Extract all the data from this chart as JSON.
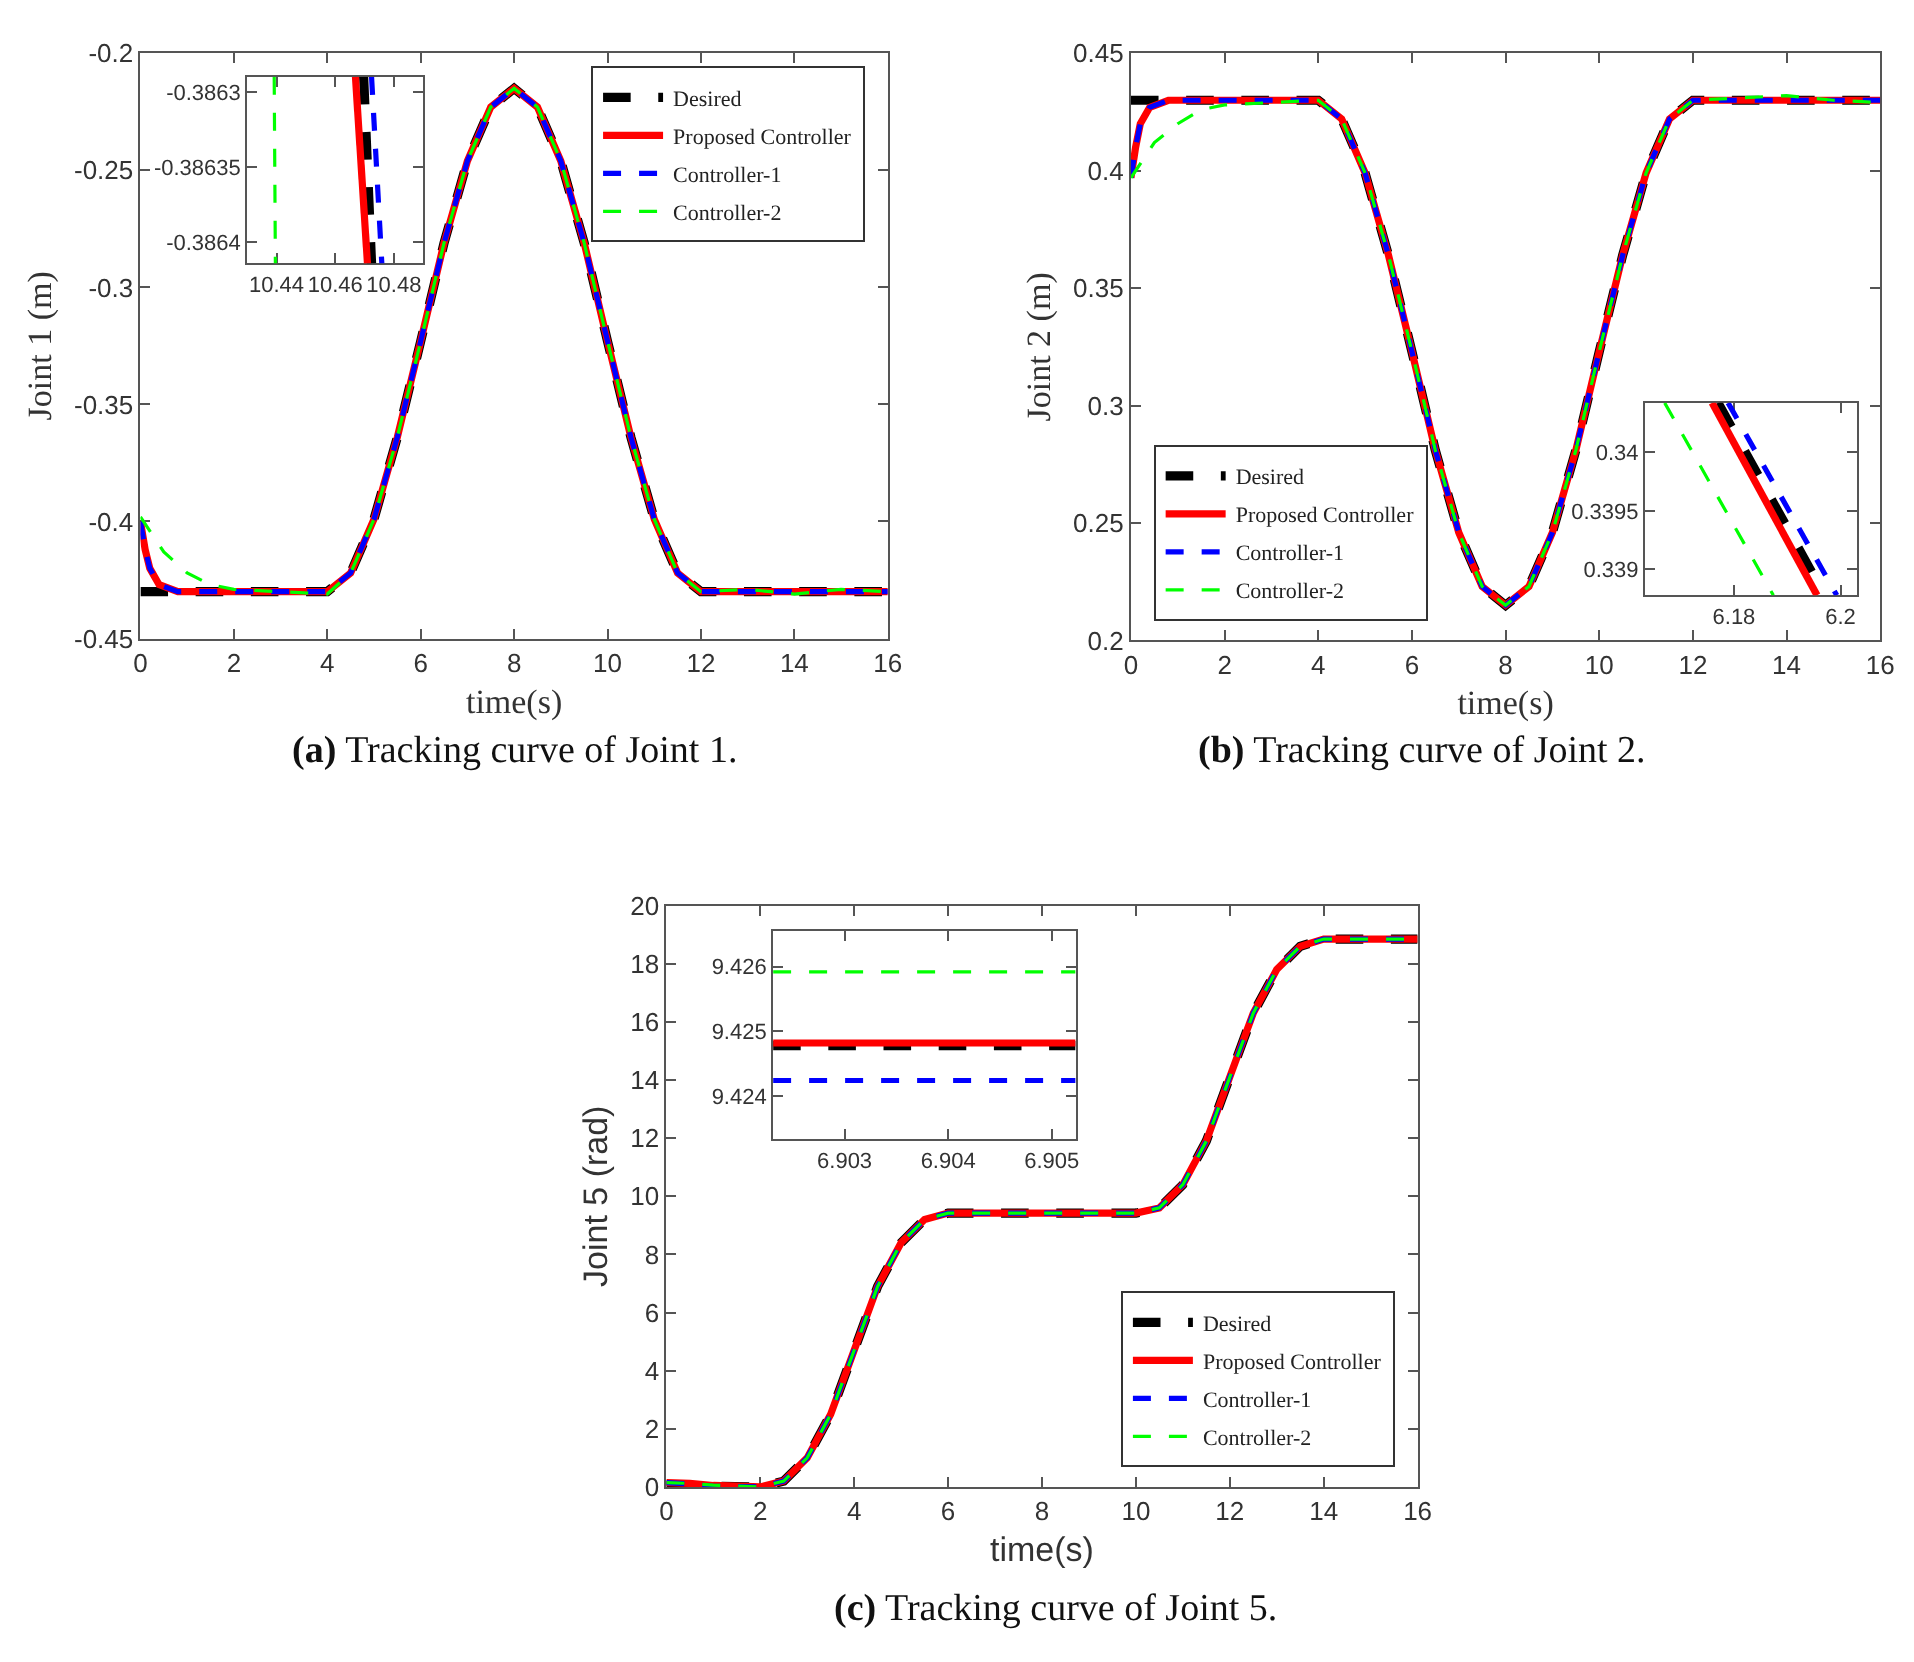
{
  "chart_data": [
    {
      "type": "line",
      "xlabel": "time(s)",
      "ylabel": "Joint 1 (m)",
      "annotations": [
        "(a) Tracking curve of Joint 1."
      ],
      "xlim": [
        0,
        16
      ],
      "ylim": [
        -0.45,
        -0.2
      ],
      "xticks": [
        0,
        2,
        4,
        6,
        8,
        10,
        12,
        14,
        16
      ],
      "yticks": [
        -0.45,
        -0.4,
        -0.35,
        -0.3,
        -0.25,
        -0.2
      ],
      "legend": "top right",
      "series": [
        {
          "name": "Desired",
          "color": "#000000",
          "line_style": "dashed",
          "x": [
            0,
            4,
            4.5,
            5,
            5.5,
            6,
            6.5,
            7,
            7.5,
            8,
            8.5,
            9,
            9.5,
            10,
            10.5,
            11,
            11.5,
            12,
            16
          ],
          "values": [
            -0.43,
            -0.43,
            -0.422,
            -0.399,
            -0.364,
            -0.323,
            -0.281,
            -0.246,
            -0.223,
            -0.215,
            -0.223,
            -0.246,
            -0.281,
            -0.323,
            -0.364,
            -0.399,
            -0.422,
            -0.43,
            -0.43
          ]
        },
        {
          "name": "Proposed Controller",
          "color": "#ff0000",
          "line_style": "solid",
          "x": [
            0,
            0.1,
            0.2,
            0.4,
            0.8,
            4,
            4.5,
            5,
            5.5,
            6,
            6.5,
            7,
            7.5,
            8,
            8.5,
            9,
            9.5,
            10,
            10.5,
            11,
            11.5,
            12,
            16
          ],
          "values": [
            -0.4,
            -0.412,
            -0.42,
            -0.427,
            -0.43,
            -0.43,
            -0.422,
            -0.399,
            -0.364,
            -0.323,
            -0.281,
            -0.246,
            -0.223,
            -0.215,
            -0.223,
            -0.246,
            -0.281,
            -0.323,
            -0.364,
            -0.399,
            -0.422,
            -0.43,
            -0.43
          ]
        },
        {
          "name": "Controller-1",
          "color": "#0000ff",
          "line_style": "dashed",
          "x": [
            0,
            0.1,
            0.2,
            0.4,
            0.8,
            4,
            4.5,
            5,
            5.5,
            6,
            6.5,
            7,
            7.5,
            8,
            8.5,
            9,
            9.5,
            10,
            10.5,
            11,
            11.5,
            12,
            16
          ],
          "values": [
            -0.4,
            -0.412,
            -0.42,
            -0.427,
            -0.43,
            -0.43,
            -0.422,
            -0.399,
            -0.364,
            -0.323,
            -0.281,
            -0.246,
            -0.223,
            -0.215,
            -0.223,
            -0.246,
            -0.281,
            -0.323,
            -0.364,
            -0.399,
            -0.422,
            -0.43,
            -0.43
          ]
        },
        {
          "name": "Controller-2",
          "color": "#00ff00",
          "line_style": "dashed",
          "x": [
            0,
            0.5,
            1,
            1.5,
            2,
            3,
            4,
            4.5,
            5,
            5.5,
            6,
            6.5,
            7,
            7.5,
            8,
            8.5,
            9,
            9.5,
            10,
            10.5,
            11,
            11.5,
            12,
            13,
            14,
            15,
            16
          ],
          "values": [
            -0.398,
            -0.413,
            -0.422,
            -0.427,
            -0.429,
            -0.43,
            -0.431,
            -0.422,
            -0.399,
            -0.364,
            -0.323,
            -0.281,
            -0.246,
            -0.223,
            -0.215,
            -0.223,
            -0.246,
            -0.281,
            -0.323,
            -0.364,
            -0.399,
            -0.422,
            -0.43,
            -0.429,
            -0.431,
            -0.429,
            -0.43
          ]
        }
      ]
    },
    {
      "type": "line",
      "xlim": [
        10.43,
        10.49
      ],
      "ylim": [
        -0.386414,
        -0.38629
      ],
      "xticks": [
        10.44,
        10.46,
        10.48
      ],
      "yticks": [
        -0.3864,
        -0.38635,
        -0.3863
      ],
      "series": [
        {
          "color": "#000000",
          "line_style": "dashed",
          "x": [
            10.4697,
            10.4724
          ],
          "values": [
            -0.38629,
            -0.386414
          ]
        },
        {
          "color": "#ff0000",
          "line_style": "solid",
          "x": [
            10.4669,
            10.471
          ],
          "values": [
            -0.38629,
            -0.386414
          ]
        },
        {
          "color": "#0000ff",
          "line_style": "dashed",
          "x": [
            10.4724,
            10.4759
          ],
          "values": [
            -0.38629,
            -0.386414
          ]
        },
        {
          "color": "#00ff00",
          "line_style": "dashed",
          "x": [
            10.4392,
            10.4396
          ],
          "values": [
            -0.38629,
            -0.386414
          ]
        }
      ]
    },
    {
      "type": "line",
      "xlabel": "time(s)",
      "ylabel": "Joint 2 (m)",
      "annotations": [
        "(b) Tracking curve of Joint 2."
      ],
      "xlim": [
        0,
        16
      ],
      "ylim": [
        0.2,
        0.45
      ],
      "xticks": [
        0,
        2,
        4,
        6,
        8,
        10,
        12,
        14,
        16
      ],
      "yticks": [
        0.2,
        0.25,
        0.3,
        0.35,
        0.4,
        0.45
      ],
      "legend": "bottom left",
      "series": [
        {
          "name": "Desired",
          "color": "#000000",
          "line_style": "dashed",
          "x": [
            0,
            4,
            4.5,
            5,
            5.5,
            6,
            6.5,
            7,
            7.5,
            8,
            8.5,
            9,
            9.5,
            10,
            10.5,
            11,
            11.5,
            12,
            16
          ],
          "values": [
            0.43,
            0.43,
            0.422,
            0.399,
            0.364,
            0.323,
            0.281,
            0.246,
            0.223,
            0.215,
            0.223,
            0.246,
            0.281,
            0.323,
            0.364,
            0.399,
            0.422,
            0.43,
            0.43
          ]
        },
        {
          "name": "Proposed Controller",
          "color": "#ff0000",
          "line_style": "solid",
          "x": [
            0,
            0.1,
            0.2,
            0.4,
            0.8,
            4,
            4.5,
            5,
            5.5,
            6,
            6.5,
            7,
            7.5,
            8,
            8.5,
            9,
            9.5,
            10,
            10.5,
            11,
            11.5,
            12,
            16
          ],
          "values": [
            0.397,
            0.41,
            0.42,
            0.427,
            0.43,
            0.43,
            0.422,
            0.399,
            0.364,
            0.323,
            0.281,
            0.246,
            0.223,
            0.215,
            0.223,
            0.246,
            0.281,
            0.323,
            0.364,
            0.399,
            0.422,
            0.43,
            0.43
          ]
        },
        {
          "name": "Controller-1",
          "color": "#0000ff",
          "line_style": "dashed",
          "x": [
            0,
            0.1,
            0.2,
            0.4,
            0.8,
            4,
            4.5,
            5,
            5.5,
            6,
            6.5,
            7,
            7.5,
            8,
            8.5,
            9,
            9.5,
            10,
            10.5,
            11,
            11.5,
            12,
            16
          ],
          "values": [
            0.397,
            0.41,
            0.42,
            0.427,
            0.43,
            0.43,
            0.422,
            0.399,
            0.364,
            0.323,
            0.281,
            0.246,
            0.223,
            0.215,
            0.223,
            0.246,
            0.281,
            0.323,
            0.364,
            0.399,
            0.422,
            0.43,
            0.43
          ]
        },
        {
          "name": "Controller-2",
          "color": "#00ff00",
          "line_style": "dashed",
          "x": [
            0,
            0.5,
            1,
            1.5,
            2,
            3,
            4,
            4.5,
            5,
            5.5,
            6,
            6.5,
            7,
            7.5,
            8,
            8.5,
            9,
            9.5,
            10,
            10.5,
            11,
            11.5,
            12,
            13,
            14,
            15,
            16
          ],
          "values": [
            0.397,
            0.412,
            0.42,
            0.426,
            0.428,
            0.429,
            0.43,
            0.422,
            0.399,
            0.364,
            0.323,
            0.281,
            0.246,
            0.223,
            0.215,
            0.223,
            0.246,
            0.281,
            0.323,
            0.364,
            0.399,
            0.422,
            0.43,
            0.431,
            0.432,
            0.43,
            0.429
          ]
        }
      ]
    },
    {
      "type": "line",
      "xlim": [
        6.1633,
        6.203
      ],
      "ylim": [
        0.33878,
        0.34042
      ],
      "xticks": [
        6.18,
        6.2
      ],
      "yticks": [
        0.339,
        0.3395,
        0.34
      ],
      "series": [
        {
          "color": "#000000",
          "line_style": "dashed",
          "x": [
            6.177,
            6.197
          ],
          "values": [
            0.34042,
            0.33878
          ]
        },
        {
          "color": "#ff0000",
          "line_style": "solid",
          "x": [
            6.1759,
            6.1956
          ],
          "values": [
            0.34042,
            0.33878
          ]
        },
        {
          "color": "#0000ff",
          "line_style": "dashed",
          "x": [
            6.1789,
            6.1993
          ],
          "values": [
            0.34042,
            0.33878
          ]
        },
        {
          "color": "#00ff00",
          "line_style": "dashed",
          "x": [
            6.167,
            6.1874
          ],
          "values": [
            0.34042,
            0.33878
          ]
        }
      ]
    },
    {
      "type": "line",
      "xlabel": "time(s)",
      "ylabel": "Joint 5 (rad)",
      "annotations": [
        "(c) Tracking curve of Joint 5."
      ],
      "xlim": [
        0,
        16
      ],
      "ylim": [
        0,
        20
      ],
      "xticks": [
        0,
        2,
        4,
        6,
        8,
        10,
        12,
        14,
        16
      ],
      "yticks": [
        0,
        2,
        4,
        6,
        8,
        10,
        12,
        14,
        16,
        18,
        20
      ],
      "legend": "bottom right",
      "series": [
        {
          "name": "Desired",
          "color": "#000000",
          "line_style": "dashed",
          "x": [
            0,
            2,
            2.5,
            3,
            3.5,
            4,
            4.5,
            5,
            5.5,
            6,
            10,
            10.5,
            11,
            11.5,
            12,
            12.5,
            13,
            13.5,
            14,
            16
          ],
          "values": [
            0.05,
            0,
            0.2,
            1.0,
            2.5,
            4.7,
            6.9,
            8.4,
            9.2,
            9.42,
            9.42,
            9.6,
            10.4,
            11.9,
            14.1,
            16.3,
            17.8,
            18.6,
            18.85,
            18.85
          ]
        },
        {
          "name": "Proposed Controller",
          "color": "#ff0000",
          "line_style": "solid",
          "x": [
            0,
            0.5,
            1,
            2,
            2.5,
            3,
            3.5,
            4,
            4.5,
            5,
            5.5,
            6,
            10,
            10.5,
            11,
            11.5,
            12,
            12.5,
            13,
            13.5,
            14,
            16
          ],
          "values": [
            0.15,
            0.12,
            0.05,
            0,
            0.2,
            1.0,
            2.5,
            4.7,
            6.9,
            8.4,
            9.2,
            9.42,
            9.42,
            9.6,
            10.4,
            11.9,
            14.1,
            16.3,
            17.8,
            18.6,
            18.85,
            18.85
          ]
        },
        {
          "name": "Controller-1",
          "color": "#0000ff",
          "line_style": "dashed",
          "x": [
            0,
            0.5,
            1,
            2,
            2.5,
            3,
            3.5,
            4,
            4.5,
            5,
            5.5,
            6,
            10,
            10.5,
            11,
            11.5,
            12,
            12.5,
            13,
            13.5,
            14,
            16
          ],
          "values": [
            0.15,
            0.1,
            0.02,
            0,
            0.2,
            1.0,
            2.5,
            4.7,
            6.9,
            8.4,
            9.2,
            9.42,
            9.42,
            9.6,
            10.4,
            11.9,
            14.1,
            16.3,
            17.8,
            18.6,
            18.85,
            18.85
          ]
        },
        {
          "name": "Controller-2",
          "color": "#00ff00",
          "line_style": "dashed",
          "x": [
            0,
            0.5,
            1,
            2,
            2.5,
            3,
            3.5,
            4,
            4.5,
            5,
            5.5,
            6,
            10,
            10.5,
            11,
            11.5,
            12,
            12.5,
            13,
            13.5,
            14,
            16
          ],
          "values": [
            0.15,
            0.12,
            0.06,
            0,
            0.2,
            1.0,
            2.5,
            4.7,
            6.9,
            8.4,
            9.2,
            9.42,
            9.42,
            9.6,
            10.4,
            11.9,
            14.1,
            16.3,
            17.8,
            18.6,
            18.85,
            18.85
          ]
        }
      ]
    },
    {
      "type": "line",
      "xlim": [
        6.90231,
        6.90523
      ],
      "ylim": [
        9.42333,
        9.42655
      ],
      "xticks": [
        6.903,
        6.904,
        6.905
      ],
      "yticks": [
        9.424,
        9.425,
        9.426
      ],
      "series": [
        {
          "color": "#000000",
          "line_style": "dashed",
          "x": [
            6.90231,
            6.90523
          ],
          "values": [
            9.42478,
            9.42478
          ]
        },
        {
          "color": "#ff0000",
          "line_style": "solid",
          "x": [
            6.90231,
            6.90523
          ],
          "values": [
            9.42482,
            9.42482
          ]
        },
        {
          "color": "#0000ff",
          "line_style": "dashed",
          "x": [
            6.90231,
            6.90523
          ],
          "values": [
            9.42424,
            9.42424
          ]
        },
        {
          "color": "#00ff00",
          "line_style": "dashed",
          "x": [
            6.90231,
            6.90523
          ],
          "values": [
            9.42592,
            9.42592
          ]
        }
      ]
    }
  ]
}
